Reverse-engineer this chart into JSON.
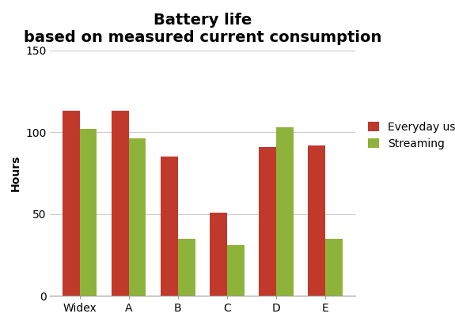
{
  "categories": [
    "Widex",
    "A",
    "B",
    "C",
    "D",
    "E"
  ],
  "everyday_use": [
    113,
    113,
    85,
    51,
    91,
    92
  ],
  "streaming": [
    102,
    96,
    35,
    31,
    103,
    35
  ],
  "bar_color_everyday": "#C0392B",
  "bar_color_streaming": "#8DB33A",
  "title_line1": "Battery life",
  "title_line2": "based on measured current consumption",
  "ylabel": "Hours",
  "ylim": [
    0,
    150
  ],
  "yticks": [
    0,
    50,
    100,
    150
  ],
  "legend_labels": [
    "Everyday use",
    "Streaming"
  ],
  "title_fontsize": 14,
  "label_fontsize": 10,
  "tick_fontsize": 10,
  "legend_fontsize": 10,
  "background_color": "#FFFFFF",
  "bar_width": 0.35,
  "grid_color": "#CCCCCC"
}
